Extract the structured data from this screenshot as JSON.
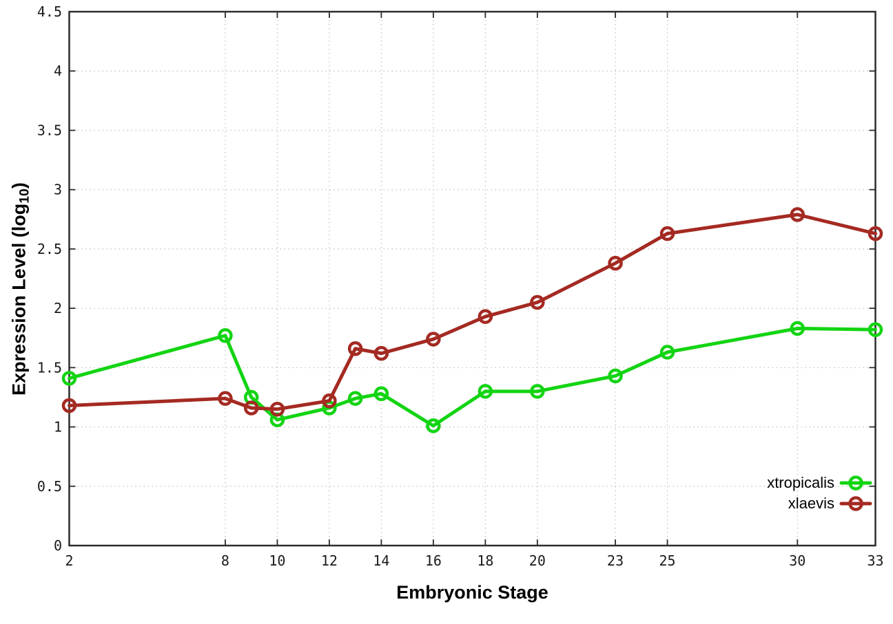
{
  "page": {
    "background": "#ffffff"
  },
  "chart_data": {
    "type": "line",
    "title": "",
    "xlabel": "Embryonic Stage",
    "ylabel": {
      "prefix": "Expression Level (log",
      "sub": "10",
      "suffix": ")"
    },
    "xlim": [
      2,
      33
    ],
    "ylim": [
      0,
      4.5
    ],
    "x_ticks": [
      "2",
      "8",
      "10",
      "12",
      "14",
      "16",
      "18",
      "20",
      "23",
      "25",
      "30",
      "33"
    ],
    "y_ticks": [
      "0",
      "0.5",
      "1",
      "1.5",
      "2",
      "2.5",
      "3",
      "3.5",
      "4",
      "4.5"
    ],
    "grid": true,
    "legend_position": "bottom-right",
    "x": [
      2,
      8,
      9,
      10,
      12,
      13,
      14,
      16,
      18,
      20,
      23,
      25,
      30,
      33
    ],
    "series": [
      {
        "name": "xtropicalis",
        "color": "#13d413",
        "marker": "open-circle",
        "values": [
          1.41,
          1.77,
          1.25,
          1.06,
          1.16,
          1.24,
          1.28,
          1.01,
          1.3,
          1.3,
          1.43,
          1.63,
          1.83,
          1.82
        ]
      },
      {
        "name": "xlaevis",
        "color": "#a42a22",
        "marker": "open-circle",
        "values": [
          1.18,
          1.24,
          1.16,
          1.15,
          1.22,
          1.66,
          1.62,
          1.74,
          1.93,
          2.05,
          2.38,
          2.63,
          2.79,
          2.63
        ]
      }
    ],
    "axis_color": "#2b2b2b",
    "grid_color": "#bdbdbd",
    "tick_label_color": "#1a1a1a"
  }
}
